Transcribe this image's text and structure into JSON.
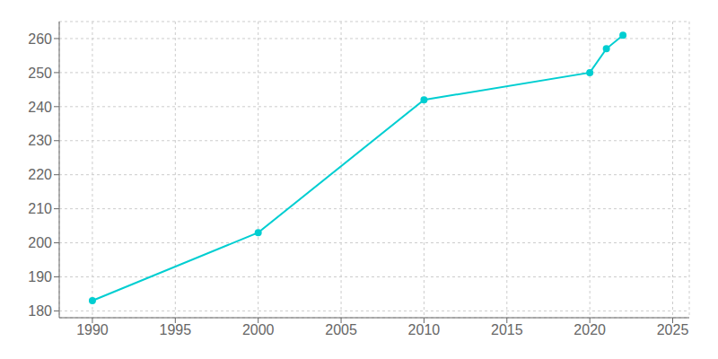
{
  "chart_data": {
    "type": "line",
    "x": [
      1990,
      2000,
      2010,
      2020,
      2021,
      2022
    ],
    "values": [
      183,
      203,
      242,
      250,
      257,
      261
    ],
    "color": "#00CED1",
    "marker": "circle",
    "xlim": [
      1988,
      2026
    ],
    "ylim": [
      178,
      265
    ],
    "xticks": [
      1990,
      1995,
      2000,
      2005,
      2010,
      2015,
      2020,
      2025
    ],
    "yticks": [
      180,
      190,
      200,
      210,
      220,
      230,
      240,
      250,
      260
    ],
    "grid": true
  }
}
